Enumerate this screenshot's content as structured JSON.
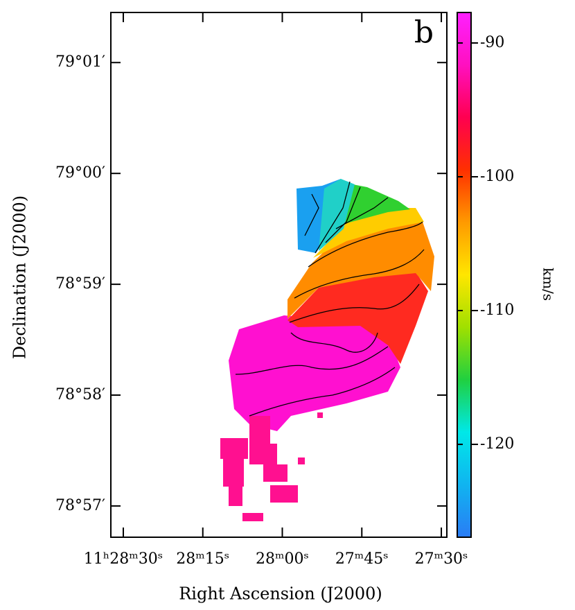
{
  "chart_data": {
    "type": "image",
    "panel_label": "b",
    "x_label": "Right Ascension (J2000)",
    "y_label": "Declination (J2000)",
    "xlim": [
      41312.35,
      41248.96
    ],
    "xticks": [
      {
        "value": 41310,
        "label": "11ʰ28ᵐ30ˢ"
      },
      {
        "value": 41295,
        "label": "28ᵐ15ˢ"
      },
      {
        "value": 41280,
        "label": "28ᵐ00ˢ"
      },
      {
        "value": 41265,
        "label": "27ᵐ45ˢ"
      },
      {
        "value": 41250,
        "label": "27ᵐ30ˢ"
      }
    ],
    "ylim": [
      78.9453,
      79.0242
    ],
    "yticks": [
      {
        "value": 78.95,
        "label": "78°57′"
      },
      {
        "value": 78.96667,
        "label": "78°58′"
      },
      {
        "value": 78.98333,
        "label": "78°59′"
      },
      {
        "value": 79.0,
        "label": "79°00′"
      },
      {
        "value": 79.01667,
        "label": "79°01′"
      }
    ],
    "colorbar": {
      "label": "km/s",
      "lim": [
        -126.94,
        -87.72
      ],
      "ticks": [
        -120,
        -110,
        -100,
        -90
      ],
      "colormap": [
        "#2a7cf5",
        "#10b4f0",
        "#00e8e8",
        "#20d040",
        "#a0e000",
        "#ffe600",
        "#ff9a00",
        "#ff3000",
        "#ff0050",
        "#ff10c0",
        "#ff20ff"
      ]
    }
  }
}
